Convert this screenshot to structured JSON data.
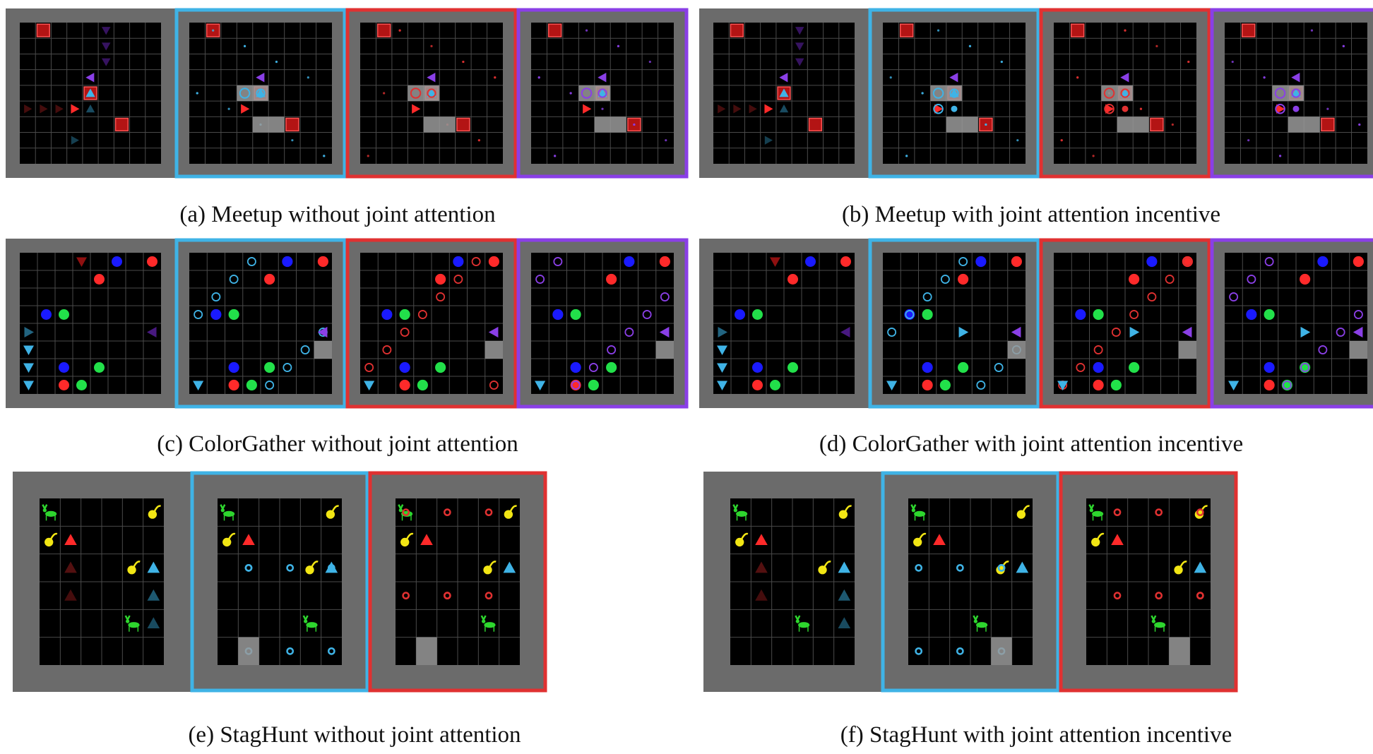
{
  "colors": {
    "background": "#ffffff",
    "panel_gray": "#6b6b6b",
    "grid_black": "#000000",
    "grid_line": "#4a4a4a",
    "blue_view": "#3fb3e6",
    "red_view": "#e03131",
    "purple_view": "#8a3fe6",
    "red_item": "#ff2a2a",
    "green_item": "#22e04a",
    "blue_item": "#1a1aff",
    "yellow_item": "#f2e614",
    "stag_green": "#2ed62e"
  },
  "panels": [
    {
      "caption": "(a) Meetup without joint attention",
      "env": "meetup",
      "views": [
        "global",
        "blue",
        "red",
        "purple"
      ]
    },
    {
      "caption": "(b) Meetup with joint attention incentive",
      "env": "meetup",
      "views": [
        "global",
        "blue",
        "red",
        "purple"
      ]
    },
    {
      "caption": "(c) ColorGather without joint attention",
      "env": "colorgather",
      "views": [
        "global",
        "blue",
        "red",
        "purple"
      ]
    },
    {
      "caption": "(d) ColorGather with joint attention incentive",
      "env": "colorgather",
      "views": [
        "global",
        "blue",
        "red",
        "purple"
      ]
    },
    {
      "caption": "(e) StagHunt without joint attention",
      "env": "staghunt",
      "views": [
        "global",
        "blue",
        "red"
      ]
    },
    {
      "caption": "(f) StagHunt with joint attention incentive",
      "env": "staghunt",
      "views": [
        "global",
        "blue",
        "red"
      ]
    }
  ],
  "icons": {
    "agent": "triangle-agent-icon",
    "goal": "goal-square-icon",
    "item": "colored-disc-icon",
    "attention": "attention-ring-icon",
    "stag": "stag-icon",
    "plant": "plant-icon"
  }
}
